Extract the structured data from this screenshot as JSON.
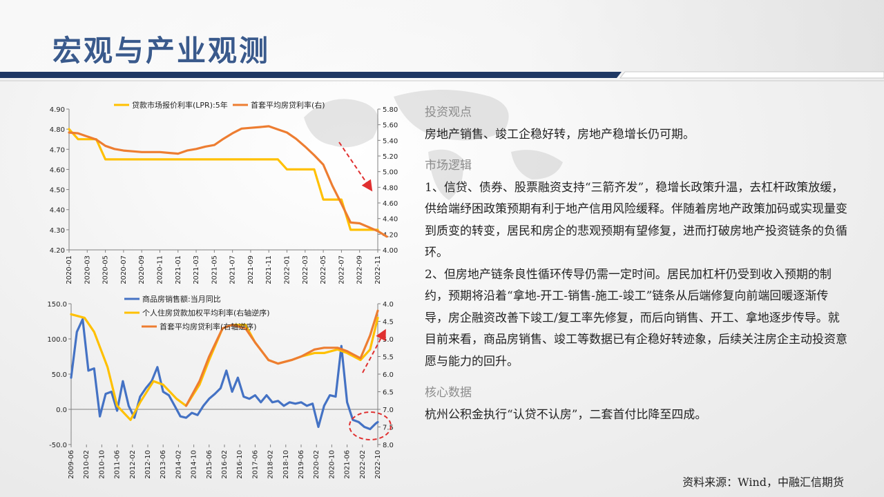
{
  "page": {
    "title": "宏观与产业观测",
    "source": "资料来源：Wind，中融汇信期货"
  },
  "right_panel": {
    "sections": [
      {
        "heading": "投资观点",
        "paragraphs": [
          "房地产销售、竣工企稳好转，房地产稳增长仍可期。"
        ]
      },
      {
        "heading": "市场逻辑",
        "paragraphs": [
          "1、信贷、债券、股票融资支持“三箭齐发”，稳增长政策升温，去杠杆政策放缓，供给端纾困政策预期有利于地产信用风险缓释。伴随着房地产政策加码或实现量变到质变的转变，居民和房企的悲观预期有望修复，进而打破房地产投资链条的负循环。",
          "2、但房地产链条良性循环传导仍需一定时间。居民加杠杆仍受到收入预期的制约，预期将沿着“拿地-开工-销售-施工-竣工”链条从后端修复向前端回暖逐渐传导，房企融资改善下竣工/复工率先修复，而后向销售、开工、拿地逐步传导。就目前来看，商品房销售、竣工等数据已有企稳好转迹象，后续关注房企主动投资意愿与能力的回升。"
        ]
      },
      {
        "heading": "核心数据",
        "paragraphs": [
          "杭州公积金执行“认贷不认房”，二套首付比降至四成。"
        ]
      }
    ]
  },
  "colors": {
    "title": "#3a5a8c",
    "navy": "#1f3864",
    "yellow": "#ffc000",
    "orange": "#ed7d31",
    "blue": "#4472c4",
    "red": "#e03030"
  },
  "chart_data": [
    {
      "type": "line",
      "series": [
        {
          "name": "贷款市场报价利率(LPR):5年",
          "axis": "left",
          "color": "#ffc000",
          "points": [
            [
              "2020-01",
              4.8
            ],
            [
              "2020-02",
              4.75
            ],
            [
              "2020-04",
              4.75
            ],
            [
              "2020-05",
              4.65
            ],
            [
              "2021-12",
              4.65
            ],
            [
              "2022-01",
              4.6
            ],
            [
              "2022-04",
              4.6
            ],
            [
              "2022-05",
              4.45
            ],
            [
              "2022-07",
              4.45
            ],
            [
              "2022-08",
              4.3
            ],
            [
              "2022-11",
              4.3
            ]
          ]
        },
        {
          "name": "首套平均房贷利率(右)",
          "axis": "right",
          "color": "#ed7d31",
          "points": [
            [
              "2020-01",
              5.5
            ],
            [
              "2020-02",
              5.49
            ],
            [
              "2020-03",
              5.45
            ],
            [
              "2020-04",
              5.41
            ],
            [
              "2020-05",
              5.33
            ],
            [
              "2020-06",
              5.29
            ],
            [
              "2020-07",
              5.27
            ],
            [
              "2020-08",
              5.26
            ],
            [
              "2020-09",
              5.25
            ],
            [
              "2020-10",
              5.25
            ],
            [
              "2020-11",
              5.25
            ],
            [
              "2020-12",
              5.24
            ],
            [
              "2021-01",
              5.23
            ],
            [
              "2021-02",
              5.27
            ],
            [
              "2021-03",
              5.29
            ],
            [
              "2021-04",
              5.32
            ],
            [
              "2021-05",
              5.34
            ],
            [
              "2021-06",
              5.42
            ],
            [
              "2021-07",
              5.49
            ],
            [
              "2021-08",
              5.55
            ],
            [
              "2021-09",
              5.56
            ],
            [
              "2021-10",
              5.57
            ],
            [
              "2021-11",
              5.58
            ],
            [
              "2021-12",
              5.54
            ],
            [
              "2022-01",
              5.5
            ],
            [
              "2022-02",
              5.42
            ],
            [
              "2022-03",
              5.32
            ],
            [
              "2022-04",
              5.21
            ],
            [
              "2022-05",
              5.09
            ],
            [
              "2022-06",
              4.82
            ],
            [
              "2022-07",
              4.59
            ],
            [
              "2022-08",
              4.35
            ],
            [
              "2022-09",
              4.34
            ],
            [
              "2022-10",
              4.29
            ],
            [
              "2022-11",
              4.24
            ],
            [
              "2022-12",
              4.17
            ]
          ]
        }
      ],
      "x_ticks": [
        "2020-01",
        "2020-03",
        "2020-05",
        "2020-07",
        "2020-09",
        "2020-11",
        "2021-01",
        "2021-03",
        "2021-05",
        "2021-07",
        "2021-09",
        "2021-11",
        "2022-01",
        "2022-03",
        "2022-05",
        "2022-07",
        "2022-09",
        "2022-11"
      ],
      "y_left": {
        "ticks": [
          "4.90",
          "4.80",
          "4.70",
          "4.60",
          "4.50",
          "4.40",
          "4.30",
          "4.20"
        ],
        "lim": [
          4.2,
          4.9
        ]
      },
      "y_right": {
        "ticks": [
          "5.80",
          "5.60",
          "5.40",
          "5.20",
          "5.00",
          "4.80",
          "4.60",
          "4.40",
          "4.20",
          "4.00"
        ],
        "lim": [
          4.0,
          5.8
        ]
      },
      "legend": "top",
      "annotations": [
        "red dashed arrow pointing down-right"
      ]
    },
    {
      "type": "line",
      "series": [
        {
          "name": "商品房销售额:当月同比",
          "axis": "left",
          "color": "#4472c4",
          "points": [
            [
              "2009-06",
              45
            ],
            [
              "2009-09",
              110
            ],
            [
              "2009-12",
              128
            ],
            [
              "2010-03",
              55
            ],
            [
              "2010-06",
              58
            ],
            [
              "2010-09",
              -10
            ],
            [
              "2010-12",
              22
            ],
            [
              "2011-03",
              25
            ],
            [
              "2011-06",
              -2
            ],
            [
              "2011-09",
              40
            ],
            [
              "2011-12",
              5
            ],
            [
              "2012-03",
              -12
            ],
            [
              "2012-06",
              18
            ],
            [
              "2012-09",
              30
            ],
            [
              "2012-12",
              40
            ],
            [
              "2013-03",
              60
            ],
            [
              "2013-06",
              25
            ],
            [
              "2013-09",
              20
            ],
            [
              "2013-12",
              5
            ],
            [
              "2014-03",
              -10
            ],
            [
              "2014-06",
              -12
            ],
            [
              "2014-09",
              -5
            ],
            [
              "2014-12",
              -8
            ],
            [
              "2015-03",
              5
            ],
            [
              "2015-06",
              15
            ],
            [
              "2015-09",
              22
            ],
            [
              "2015-12",
              30
            ],
            [
              "2016-03",
              55
            ],
            [
              "2016-06",
              25
            ],
            [
              "2016-09",
              45
            ],
            [
              "2016-12",
              18
            ],
            [
              "2017-03",
              15
            ],
            [
              "2017-06",
              20
            ],
            [
              "2017-09",
              10
            ],
            [
              "2017-12",
              20
            ],
            [
              "2018-03",
              10
            ],
            [
              "2018-06",
              12
            ],
            [
              "2018-09",
              5
            ],
            [
              "2018-12",
              10
            ],
            [
              "2019-03",
              8
            ],
            [
              "2019-06",
              10
            ],
            [
              "2019-09",
              5
            ],
            [
              "2019-12",
              8
            ],
            [
              "2020-03",
              -25
            ],
            [
              "2020-06",
              5
            ],
            [
              "2020-09",
              20
            ],
            [
              "2020-12",
              18
            ],
            [
              "2021-03",
              90
            ],
            [
              "2021-06",
              10
            ],
            [
              "2021-09",
              -15
            ],
            [
              "2021-12",
              -18
            ],
            [
              "2022-03",
              -25
            ],
            [
              "2022-06",
              -28
            ],
            [
              "2022-09",
              -20
            ],
            [
              "2022-10",
              -18
            ]
          ]
        },
        {
          "name": "个人住房贷款加权平均利率(右轴逆序)",
          "axis": "right",
          "color": "#ffc000",
          "points": [
            [
              "2009-06",
              4.3
            ],
            [
              "2010-01",
              4.4
            ],
            [
              "2010-06",
              4.8
            ],
            [
              "2011-01",
              5.8
            ],
            [
              "2011-06",
              6.9
            ],
            [
              "2012-01",
              7.3
            ],
            [
              "2012-06",
              6.8
            ],
            [
              "2013-01",
              6.2
            ],
            [
              "2013-06",
              6.3
            ],
            [
              "2014-01",
              6.7
            ],
            [
              "2014-06",
              6.9
            ],
            [
              "2015-01",
              6.3
            ],
            [
              "2015-06",
              5.6
            ],
            [
              "2016-01",
              4.7
            ],
            [
              "2016-06",
              4.6
            ],
            [
              "2017-01",
              4.6
            ],
            [
              "2017-06",
              5.1
            ],
            [
              "2018-01",
              5.6
            ],
            [
              "2018-06",
              5.7
            ],
            [
              "2019-01",
              5.6
            ],
            [
              "2019-06",
              5.5
            ],
            [
              "2020-01",
              5.4
            ],
            [
              "2020-06",
              5.4
            ],
            [
              "2021-01",
              5.3
            ],
            [
              "2021-06",
              5.4
            ],
            [
              "2022-01",
              5.6
            ],
            [
              "2022-06",
              5.3
            ],
            [
              "2022-10",
              4.4
            ]
          ]
        },
        {
          "name": "首套平均房贷利率(右轴逆序)",
          "axis": "right",
          "color": "#ed7d31",
          "points": [
            [
              "2014-06",
              6.9
            ],
            [
              "2015-01",
              6.2
            ],
            [
              "2015-06",
              5.5
            ],
            [
              "2016-01",
              4.7
            ],
            [
              "2016-06",
              4.6
            ],
            [
              "2017-01",
              4.7
            ],
            [
              "2017-06",
              5.1
            ],
            [
              "2018-01",
              5.6
            ],
            [
              "2018-06",
              5.7
            ],
            [
              "2019-01",
              5.6
            ],
            [
              "2019-06",
              5.5
            ],
            [
              "2020-01",
              5.3
            ],
            [
              "2020-06",
              5.25
            ],
            [
              "2021-01",
              5.25
            ],
            [
              "2021-06",
              5.35
            ],
            [
              "2022-01",
              5.55
            ],
            [
              "2022-06",
              4.9
            ],
            [
              "2022-10",
              4.2
            ]
          ]
        }
      ],
      "x_ticks": [
        "2009-06",
        "2010-02",
        "2010-10",
        "2011-06",
        "2012-02",
        "2012-10",
        "2013-06",
        "2014-02",
        "2014-10",
        "2015-06",
        "2016-02",
        "2016-10",
        "2017-06",
        "2018-02",
        "2018-10",
        "2019-06",
        "2020-02",
        "2020-10",
        "2021-06",
        "2022-02",
        "2022-10"
      ],
      "y_left": {
        "ticks": [
          "150.0",
          "100.0",
          "50.0",
          "0.0",
          "-50.0"
        ],
        "lim": [
          -50,
          150
        ]
      },
      "y_right": {
        "ticks": [
          "4.0",
          "4.5",
          "5.0",
          "5.5",
          "6.0",
          "6.5",
          "7.0",
          "7.5",
          "8.0"
        ],
        "lim": [
          4.0,
          8.0
        ],
        "inverted": true
      },
      "legend": "top",
      "annotations": [
        "red dashed arrow pointing up-right",
        "red dashed ellipse around recent sales trough"
      ]
    }
  ]
}
